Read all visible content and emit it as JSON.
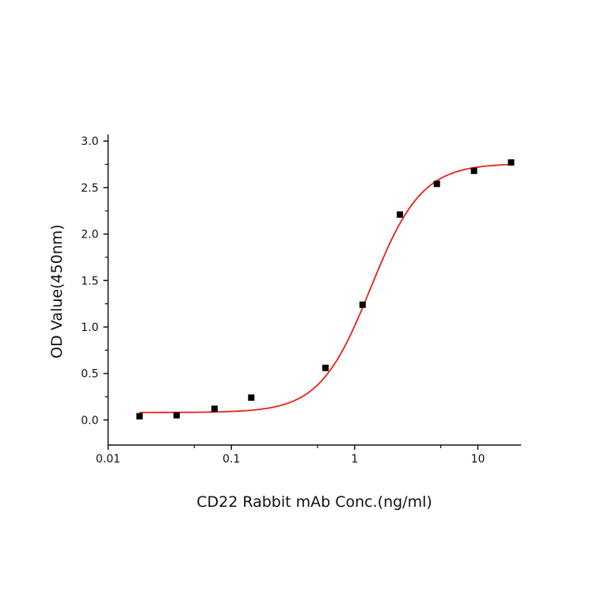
{
  "chart_data": {
    "type": "scatter",
    "xlabel": "CD22 Rabbit mAb Conc.(ng/ml)",
    "ylabel": "OD Value(450nm)",
    "xscale": "log",
    "xlim": [
      0.01,
      22.4
    ],
    "ylim": [
      -0.27,
      3.07
    ],
    "xticks": [
      "0.01",
      "0.1",
      "1",
      "10"
    ],
    "xtick_values": [
      0.01,
      0.1,
      1,
      10
    ],
    "yticks": [
      "0.0",
      "0.5",
      "1.0",
      "1.5",
      "2.0",
      "2.5",
      "3.0"
    ],
    "ytick_values": [
      0,
      0.5,
      1,
      1.5,
      2,
      2.5,
      3
    ],
    "grid": false,
    "points": {
      "x": [
        0.018,
        0.036,
        0.073,
        0.145,
        0.58,
        1.16,
        2.33,
        4.65,
        9.3,
        18.6
      ],
      "y": [
        0.04,
        0.05,
        0.12,
        0.24,
        0.56,
        1.24,
        2.21,
        2.54,
        2.68,
        2.77
      ],
      "color": "#000000",
      "marker": "square"
    },
    "fit": {
      "model": "4PL",
      "bottom": 0.08,
      "top": 2.76,
      "ec50": 1.35,
      "hill": 2.1,
      "x_range": [
        0.018,
        18.6
      ],
      "color": "#e8201e"
    }
  }
}
